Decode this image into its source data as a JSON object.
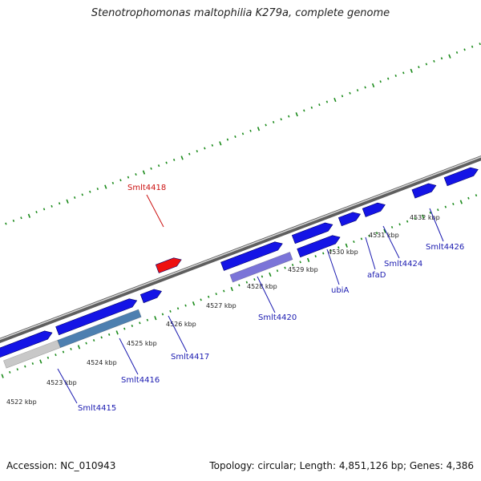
{
  "header": {
    "title": "Stenotrophomonas maltophilia K279a, complete genome"
  },
  "footer": {
    "accession": "Accession: NC_010943",
    "topology": "Topology: circular; Length: 4,851,126 bp; Genes: 4,386"
  },
  "colors": {
    "backbone": "#8a8a8a",
    "tick": "#1a8a1a",
    "forward_gene": "#1414e6",
    "highlight_gene": "#ee1111",
    "gene_label": "#1a1ab0",
    "highlight_label": "#cc1111",
    "lane_purple": "#7b74d8",
    "lane_steel": "#4d7fb0",
    "lane_grey": "#c8c8c8"
  },
  "scale_labels": [
    "4522 kbp",
    "4523 kbp",
    "4524 kbp",
    "4525 kbp",
    "4526 kbp",
    "4527 kbp",
    "4528 kbp",
    "4529 kbp",
    "4530 kbp",
    "4531 kbp",
    "4532 kbp"
  ],
  "gene_labels": [
    {
      "text": "Smlt4418",
      "highlight": true
    },
    {
      "text": "Smlt4415",
      "highlight": false
    },
    {
      "text": "Smlt4416",
      "highlight": false
    },
    {
      "text": "Smlt4417",
      "highlight": false
    },
    {
      "text": "Smlt4420",
      "highlight": false
    },
    {
      "text": "ubiA",
      "highlight": false
    },
    {
      "text": "afaD",
      "highlight": false
    },
    {
      "text": "Smlt4424",
      "highlight": false
    },
    {
      "text": "Smlt4426",
      "highlight": false
    }
  ]
}
